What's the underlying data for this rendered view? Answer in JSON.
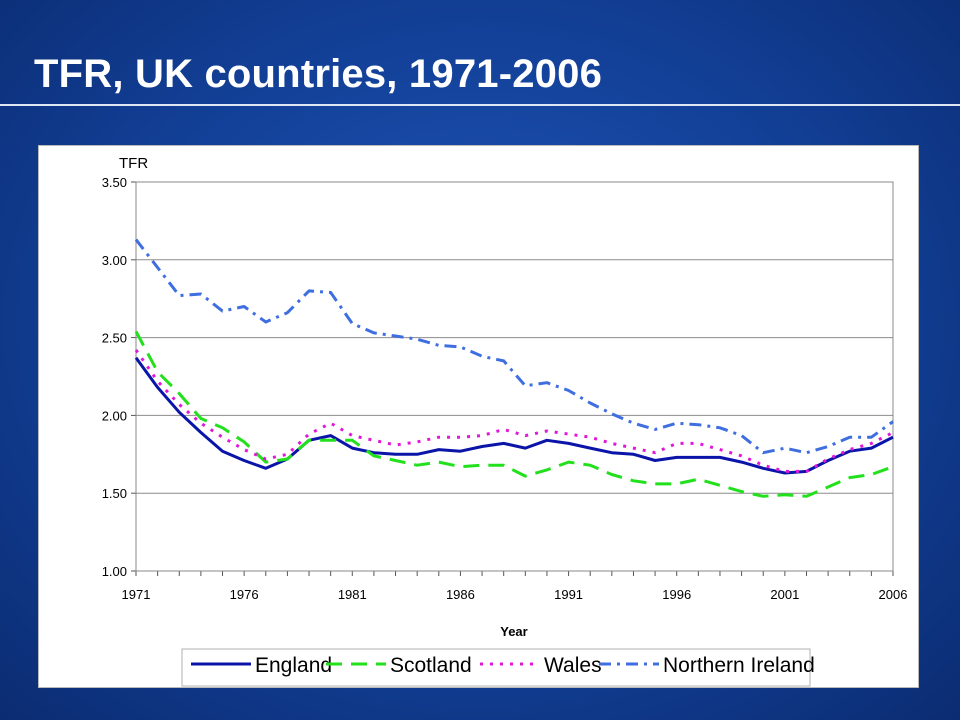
{
  "slide": {
    "title": "TFR, UK countries, 1971-2006"
  },
  "chart_data": {
    "type": "line",
    "title": "",
    "ylabel": "TFR",
    "xlabel": "Year",
    "xlim": [
      1971,
      2006
    ],
    "ylim": [
      1.0,
      3.5
    ],
    "x_ticks": [
      1971,
      1976,
      1981,
      1986,
      1991,
      1996,
      2001,
      2006
    ],
    "y_ticks": [
      "1.00",
      "1.50",
      "2.00",
      "2.50",
      "3.00",
      "3.50"
    ],
    "grid": "horizontal",
    "legend_position": "bottom",
    "x": [
      1971,
      1972,
      1973,
      1974,
      1975,
      1976,
      1977,
      1978,
      1979,
      1980,
      1981,
      1982,
      1983,
      1984,
      1985,
      1986,
      1987,
      1988,
      1989,
      1990,
      1991,
      1992,
      1993,
      1994,
      1995,
      1996,
      1997,
      1998,
      1999,
      2000,
      2001,
      2002,
      2003,
      2004,
      2005,
      2006
    ],
    "series": [
      {
        "name": "England",
        "color": "#0a14a8",
        "dash": "solid",
        "values": [
          2.37,
          2.18,
          2.02,
          1.89,
          1.77,
          1.71,
          1.66,
          1.72,
          1.84,
          1.87,
          1.79,
          1.76,
          1.75,
          1.75,
          1.78,
          1.77,
          1.8,
          1.82,
          1.79,
          1.84,
          1.82,
          1.79,
          1.76,
          1.75,
          1.71,
          1.73,
          1.73,
          1.73,
          1.7,
          1.66,
          1.63,
          1.64,
          1.71,
          1.77,
          1.79,
          1.86
        ]
      },
      {
        "name": "Scotland",
        "color": "#22e01c",
        "dash": "long-dash",
        "values": [
          2.54,
          2.28,
          2.14,
          1.98,
          1.92,
          1.83,
          1.7,
          1.72,
          1.84,
          1.84,
          1.84,
          1.74,
          1.71,
          1.68,
          1.7,
          1.67,
          1.68,
          1.68,
          1.61,
          1.65,
          1.7,
          1.68,
          1.62,
          1.58,
          1.56,
          1.56,
          1.59,
          1.55,
          1.51,
          1.48,
          1.49,
          1.48,
          1.54,
          1.6,
          1.62,
          1.67
        ]
      },
      {
        "name": "Wales",
        "color": "#e018d8",
        "dash": "dot",
        "values": [
          2.42,
          2.22,
          2.07,
          1.95,
          1.86,
          1.78,
          1.72,
          1.75,
          1.88,
          1.95,
          1.87,
          1.84,
          1.81,
          1.83,
          1.86,
          1.86,
          1.87,
          1.91,
          1.87,
          1.9,
          1.88,
          1.86,
          1.82,
          1.79,
          1.76,
          1.82,
          1.82,
          1.78,
          1.74,
          1.68,
          1.64,
          1.64,
          1.72,
          1.78,
          1.82,
          1.89
        ]
      },
      {
        "name": "Northern Ireland",
        "color": "#3f6ee0",
        "dash": "dash-dot",
        "values": [
          3.13,
          2.95,
          2.77,
          2.78,
          2.67,
          2.7,
          2.6,
          2.66,
          2.8,
          2.79,
          2.59,
          2.53,
          2.51,
          2.49,
          2.45,
          2.44,
          2.38,
          2.35,
          2.19,
          2.21,
          2.16,
          2.08,
          2.01,
          1.95,
          1.91,
          1.95,
          1.94,
          1.92,
          1.87,
          1.76,
          1.79,
          1.76,
          1.8,
          1.86,
          1.86,
          1.96
        ]
      }
    ]
  }
}
